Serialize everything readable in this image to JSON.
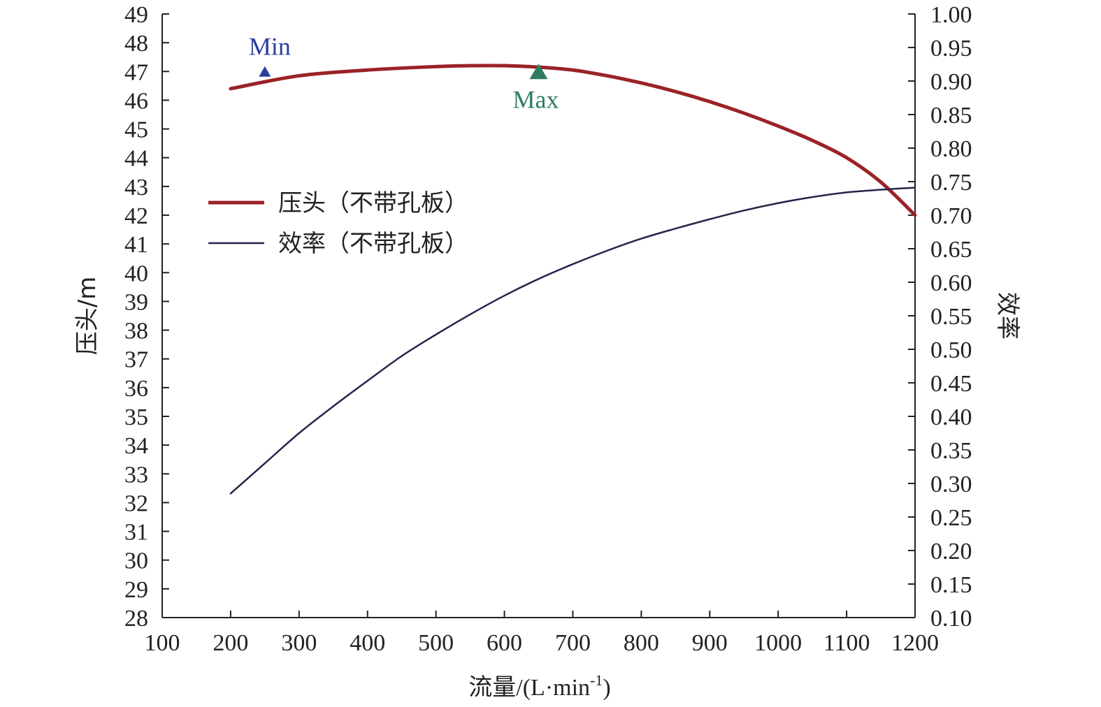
{
  "chart_data": {
    "type": "line",
    "xlabel": "流量/(L·min",
    "xlabel_sup": "-1",
    "xlabel_end": ")",
    "ylabel_left": "压头/m",
    "ylabel_right": "效率",
    "xlim": [
      100,
      1200
    ],
    "xticks": [
      100,
      200,
      300,
      400,
      500,
      600,
      700,
      800,
      900,
      1000,
      1100,
      1200
    ],
    "ylim_left": [
      28,
      49
    ],
    "yticks_left": [
      28,
      29,
      30,
      31,
      32,
      33,
      34,
      35,
      36,
      37,
      38,
      39,
      40,
      41,
      42,
      43,
      44,
      45,
      46,
      47,
      48,
      49
    ],
    "ylim_right": [
      0.1,
      1.0
    ],
    "yticks_right": [
      "0.10",
      "0.15",
      "0.20",
      "0.25",
      "0.30",
      "0.35",
      "0.40",
      "0.45",
      "0.50",
      "0.55",
      "0.60",
      "0.65",
      "0.70",
      "0.75",
      "0.80",
      "0.85",
      "0.90",
      "0.95",
      "1.00"
    ],
    "grid": false,
    "legend_position": "upper-left",
    "series": [
      {
        "name": "压头（不带孔板）",
        "axis": "left",
        "color": "#9b2226",
        "x": [
          200,
          300,
          400,
          500,
          550,
          600,
          650,
          700,
          750,
          800,
          850,
          900,
          950,
          1000,
          1050,
          1100,
          1150,
          1200
        ],
        "y": [
          46.4,
          46.85,
          47.05,
          47.17,
          47.2,
          47.2,
          47.15,
          47.05,
          46.85,
          46.6,
          46.3,
          45.95,
          45.55,
          45.1,
          44.6,
          44.0,
          43.15,
          42.0
        ]
      },
      {
        "name": "效率（不带孔板）",
        "axis": "right",
        "color": "#23264a",
        "x": [
          200,
          250,
          300,
          350,
          400,
          450,
          500,
          550,
          600,
          650,
          700,
          750,
          800,
          850,
          900,
          950,
          1000,
          1050,
          1100,
          1150,
          1200
        ],
        "y": [
          0.285,
          0.33,
          0.375,
          0.415,
          0.453,
          0.49,
          0.522,
          0.552,
          0.58,
          0.605,
          0.627,
          0.647,
          0.665,
          0.68,
          0.694,
          0.707,
          0.718,
          0.727,
          0.734,
          0.738,
          0.741
        ]
      }
    ],
    "markers": [
      {
        "label": "Min",
        "x": 250,
        "y": 47.0,
        "color": "#2b3d9f",
        "size": "small"
      },
      {
        "label": "Max",
        "x": 650,
        "y": 47.0,
        "color": "#2e7d63",
        "size": "large"
      }
    ]
  }
}
